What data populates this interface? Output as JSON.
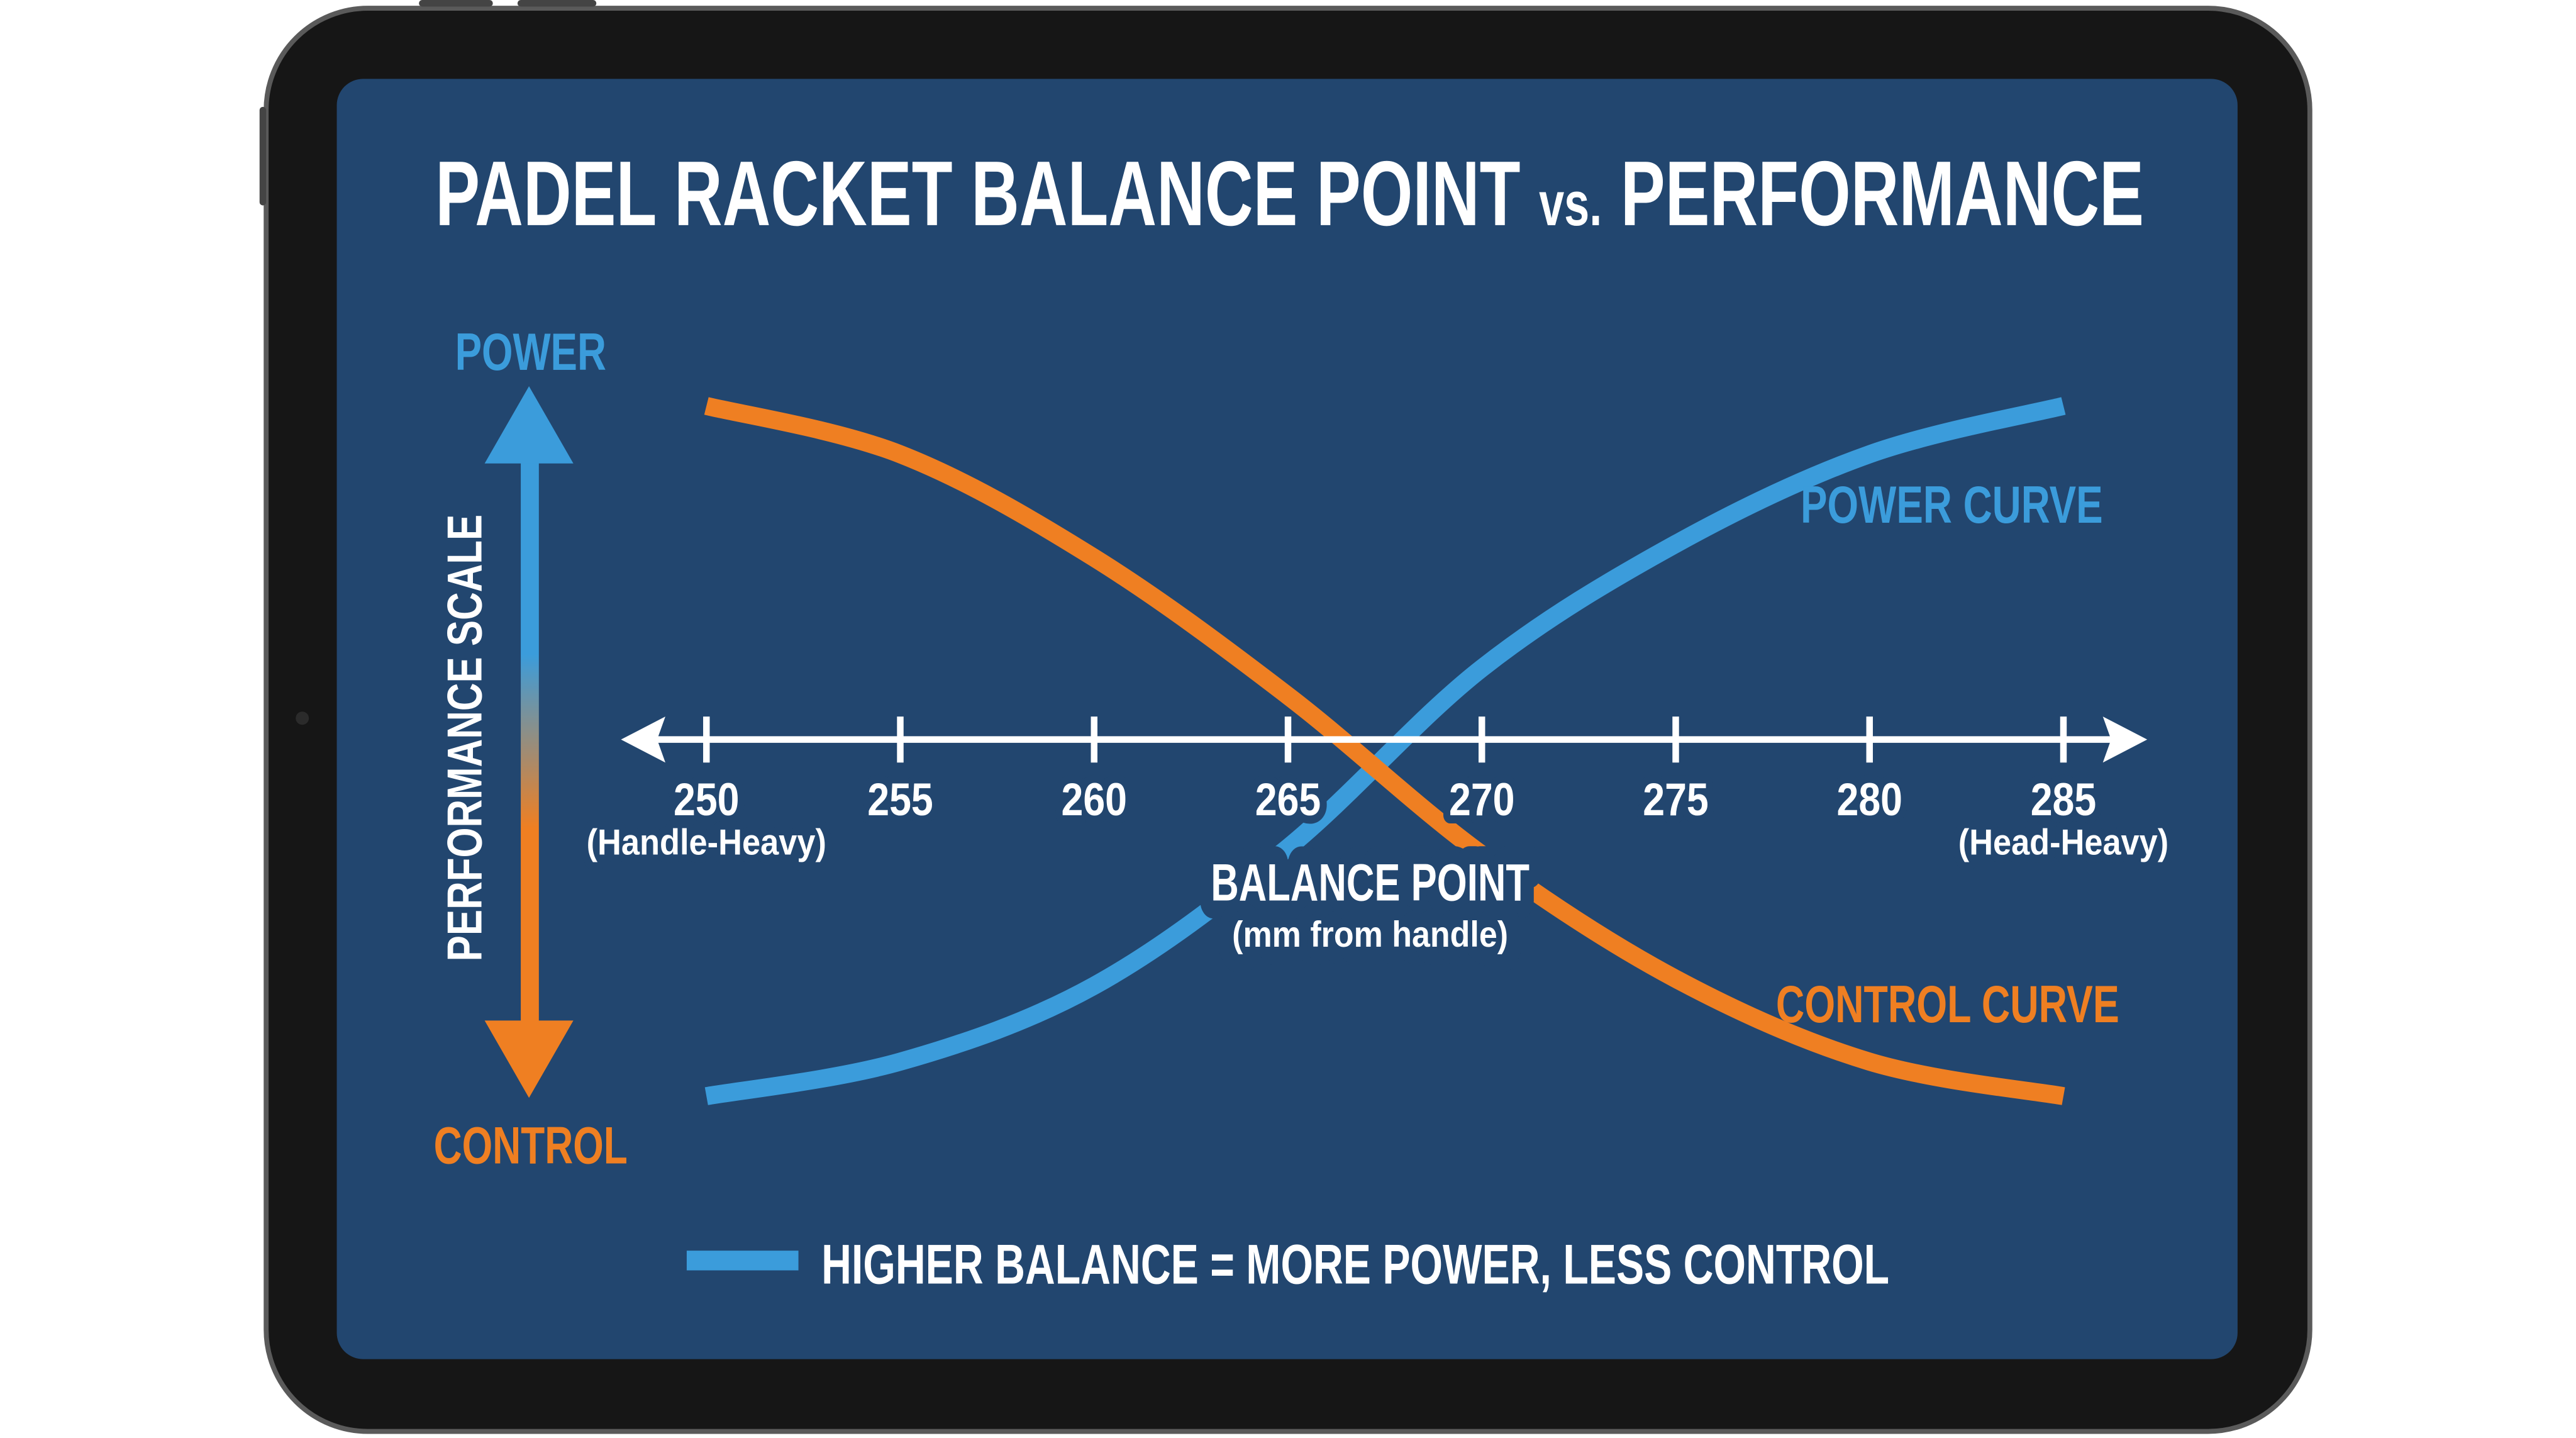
{
  "colors": {
    "background": "#22466f",
    "power": "#3b9cdb",
    "control": "#ef7f22",
    "text": "#ffffff",
    "device_frame": "#161616"
  },
  "chart_data": {
    "type": "line",
    "title": "PADEL RACKET BALANCE POINT",
    "title_vs": "vs.",
    "title_end": "PERFORMANCE",
    "xlabel": "BALANCE POINT",
    "xlabel_sub": "(mm from handle)",
    "ylabel": "PERFORMANCE SCALE",
    "y_top_label": "POWER",
    "y_bottom_label": "CONTROL",
    "x": [
      250,
      255,
      260,
      265,
      270,
      275,
      280,
      285
    ],
    "tick_labels": [
      "250",
      "255",
      "260",
      "265",
      "270",
      "275",
      "280",
      "285"
    ],
    "x_end_labels": {
      "left": "(Handle-Heavy)",
      "right": "(Head-Heavy)"
    },
    "xlim": [
      250,
      285
    ],
    "ylim": [
      0,
      1
    ],
    "grid": false,
    "series": [
      {
        "name": "POWER CURVE",
        "color": "#3b9cdb",
        "values": [
          0.0,
          0.05,
          0.16,
          0.36,
          0.62,
          0.8,
          0.93,
          1.0
        ]
      },
      {
        "name": "CONTROL CURVE",
        "color": "#ef7f22",
        "values": [
          1.0,
          0.93,
          0.78,
          0.58,
          0.35,
          0.17,
          0.05,
          0.0
        ]
      }
    ],
    "legend": {
      "text": "HIGHER BALANCE = MORE POWER, LESS CONTROL",
      "color": "#3b9cdb",
      "placement": "bottom"
    }
  }
}
